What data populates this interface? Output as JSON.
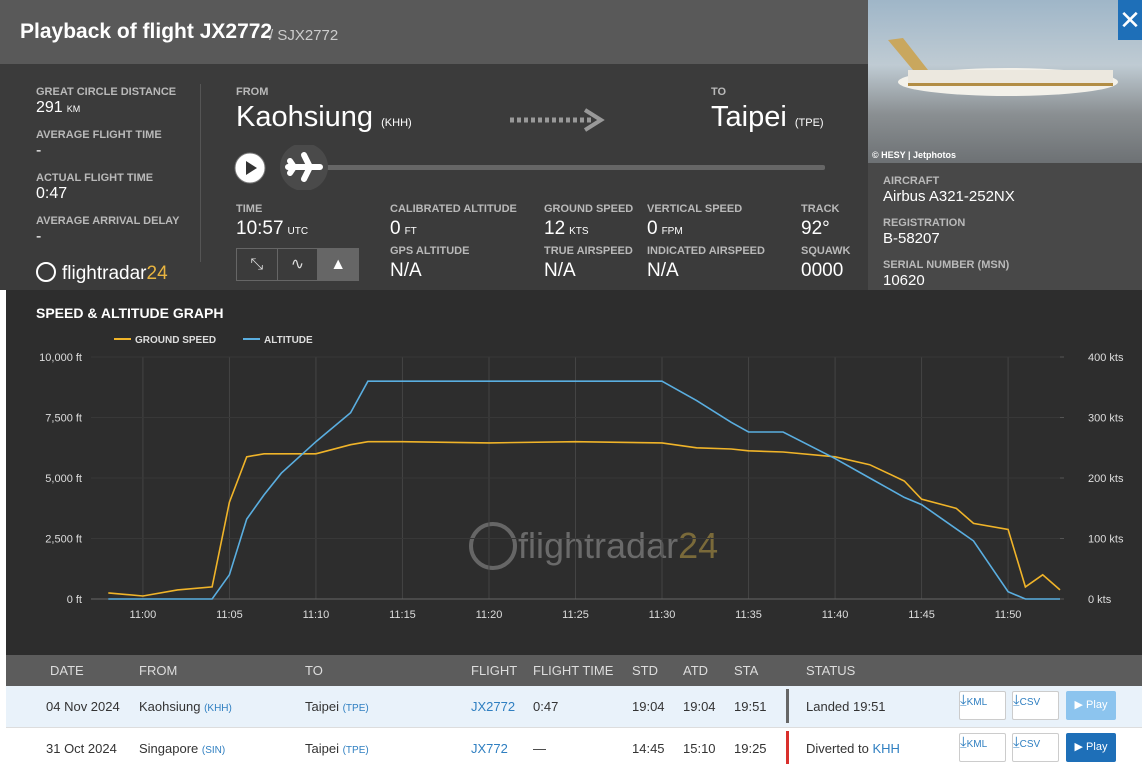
{
  "header": {
    "title": "Playback of flight JX2772",
    "subtitle": "/ SJX2772"
  },
  "stats": [
    {
      "label": "GREAT CIRCLE DISTANCE",
      "value": "291",
      "unit": "KM"
    },
    {
      "label": "AVERAGE FLIGHT TIME",
      "value": "-"
    },
    {
      "label": "ACTUAL FLIGHT TIME",
      "value": "0:47"
    },
    {
      "label": "AVERAGE ARRIVAL DELAY",
      "value": "-"
    }
  ],
  "logo": {
    "text": "flightradar",
    "suffix": "24"
  },
  "route": {
    "from_label": "FROM",
    "from_city": "Kaohsiung",
    "from_code": "(KHH)",
    "to_label": "TO",
    "to_city": "Taipei",
    "to_code": "(TPE)"
  },
  "telemetry": {
    "time": {
      "label": "TIME",
      "value": "10:57",
      "unit": "UTC"
    },
    "calibrated_altitude": {
      "label": "CALIBRATED ALTITUDE",
      "value": "0",
      "unit": "FT"
    },
    "gps_altitude": {
      "label": "GPS ALTITUDE",
      "value": "N/A"
    },
    "ground_speed": {
      "label": "GROUND SPEED",
      "value": "12",
      "unit": "KTS"
    },
    "true_airspeed": {
      "label": "TRUE AIRSPEED",
      "value": "N/A"
    },
    "vertical_speed": {
      "label": "VERTICAL SPEED",
      "value": "0",
      "unit": "FPM"
    },
    "indicated_airspeed": {
      "label": "INDICATED AIRSPEED",
      "value": "N/A"
    },
    "track": {
      "label": "TRACK",
      "value": "92°"
    },
    "squawk": {
      "label": "SQUAWK",
      "value": "0000"
    }
  },
  "aircraft": {
    "photo_credit": "© HESY | Jetphotos",
    "fields": [
      {
        "label": "AIRCRAFT",
        "value": "Airbus A321-252NX"
      },
      {
        "label": "REGISTRATION",
        "value": "B-58207"
      },
      {
        "label": "SERIAL NUMBER (MSN)",
        "value": "10620"
      }
    ]
  },
  "chart_data": {
    "type": "line",
    "title": "SPEED & ALTITUDE GRAPH",
    "x": [
      "10:58",
      "11:00",
      "11:02",
      "11:04",
      "11:05",
      "11:06",
      "11:07",
      "11:08",
      "11:10",
      "11:12",
      "11:13",
      "11:15",
      "11:20",
      "11:25",
      "11:30",
      "11:32",
      "11:34",
      "11:35",
      "11:37",
      "11:40",
      "11:42",
      "11:44",
      "11:45",
      "11:47",
      "11:48",
      "11:50",
      "11:51",
      "11:52",
      "11:53"
    ],
    "series": [
      {
        "name": "GROUND SPEED",
        "color": "#f0b429",
        "axis": "y2",
        "values": [
          10,
          5,
          15,
          20,
          160,
          235,
          240,
          240,
          240,
          255,
          260,
          260,
          258,
          260,
          258,
          250,
          248,
          245,
          243,
          235,
          222,
          195,
          165,
          150,
          125,
          115,
          20,
          40,
          15
        ]
      },
      {
        "name": "ALTITUDE",
        "color": "#5aaee0",
        "values": [
          0,
          0,
          0,
          0,
          1000,
          3300,
          4300,
          5200,
          6500,
          7700,
          9000,
          9000,
          9000,
          9000,
          9000,
          8200,
          7300,
          6900,
          6900,
          5800,
          5000,
          4200,
          3900,
          2900,
          2400,
          300,
          0,
          0,
          0
        ]
      }
    ],
    "xlim": [
      "10:57",
      "11:53"
    ],
    "xticks": [
      "11:00",
      "11:05",
      "11:10",
      "11:15",
      "11:20",
      "11:25",
      "11:30",
      "11:35",
      "11:40",
      "11:45",
      "11:50"
    ],
    "ylim": [
      0,
      10000
    ],
    "yticks": [
      {
        "value": 0,
        "label": "0 ft"
      },
      {
        "value": 2500,
        "label": "2,500 ft"
      },
      {
        "value": 5000,
        "label": "5,000 ft"
      },
      {
        "value": 7500,
        "label": "7,500 ft"
      },
      {
        "value": 10000,
        "label": "10,000 ft"
      }
    ],
    "y2lim": [
      0,
      400
    ],
    "y2ticks": [
      {
        "value": 0,
        "label": "0 kts"
      },
      {
        "value": 100,
        "label": "100 kts"
      },
      {
        "value": 200,
        "label": "200 kts"
      },
      {
        "value": 300,
        "label": "300 kts"
      },
      {
        "value": 400,
        "label": "400 kts"
      }
    ],
    "grid": true
  },
  "table": {
    "columns": [
      "DATE",
      "FROM",
      "TO",
      "FLIGHT",
      "FLIGHT TIME",
      "STD",
      "ATD",
      "STA",
      "STATUS"
    ],
    "rows": [
      {
        "date": "04 Nov 2024",
        "from": "Kaohsiung",
        "from_code": "(KHH)",
        "to": "Taipei",
        "to_code": "(TPE)",
        "flight": "JX2772",
        "flight_time": "0:47",
        "std": "19:04",
        "atd": "19:04",
        "sta": "19:51",
        "status": "Landed 19:51"
      },
      {
        "date": "31 Oct 2024",
        "from": "Singapore",
        "from_code": "(SIN)",
        "to": "Taipei",
        "to_code": "(TPE)",
        "flight": "JX772",
        "flight_time": "—",
        "std": "14:45",
        "atd": "15:10",
        "sta": "19:25",
        "status": "Diverted to",
        "status_code": "KHH"
      }
    ]
  },
  "buttons": {
    "kml": "KML",
    "csv": "CSV",
    "play": "Play"
  }
}
